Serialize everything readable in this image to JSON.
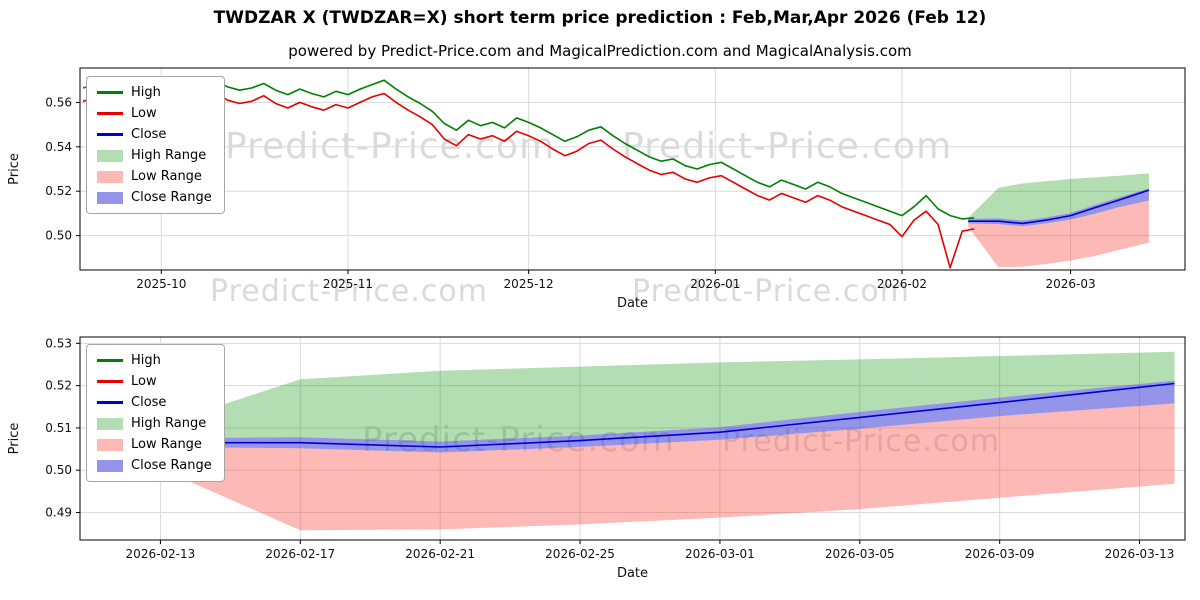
{
  "title": "TWDZAR X (TWDZAR=X) short term price prediction : Feb,Mar,Apr 2026 (Feb 12)",
  "subtitle": "powered by Predict-Price.com and MagicalPrediction.com and MagicalAnalysis.com",
  "watermark": "Predict-Price.com",
  "colors": {
    "high": "#008000",
    "low": "#e60000",
    "close": "#0000cd",
    "high_range": "rgba(0,145,0,0.30)",
    "low_range": "rgba(250,80,70,0.40)",
    "close_range": "rgba(60,60,215,0.55)",
    "grid": "#d9d9d9",
    "axis": "#000000"
  },
  "legend": {
    "items": [
      {
        "label": "High",
        "swatch": "line",
        "color": "high"
      },
      {
        "label": "Low",
        "swatch": "line",
        "color": "low"
      },
      {
        "label": "Close",
        "swatch": "line",
        "color": "close"
      },
      {
        "label": "High Range",
        "swatch": "patch",
        "color": "high_range"
      },
      {
        "label": "Low Range",
        "swatch": "patch",
        "color": "low_range"
      },
      {
        "label": "Close Range",
        "swatch": "patch",
        "color": "close_range"
      }
    ]
  },
  "chart_data": [
    {
      "type": "line",
      "name": "history-and-prediction",
      "xlabel": "Date",
      "ylabel": "Price",
      "xlim": [
        -0.5,
        183
      ],
      "ylim": [
        0.4845,
        0.5755
      ],
      "xticks": [
        {
          "v": 13,
          "label": "2025-10"
        },
        {
          "v": 44,
          "label": "2025-11"
        },
        {
          "v": 74,
          "label": "2025-12"
        },
        {
          "v": 105,
          "label": "2026-01"
        },
        {
          "v": 136,
          "label": "2026-02"
        },
        {
          "v": 164,
          "label": "2026-03"
        }
      ],
      "yticks": [
        {
          "v": 0.5,
          "label": "0.50"
        },
        {
          "v": 0.52,
          "label": "0.52"
        },
        {
          "v": 0.54,
          "label": "0.54"
        },
        {
          "v": 0.56,
          "label": "0.56"
        }
      ],
      "bands": [
        {
          "name": "high-range",
          "color": "high_range",
          "x": [
            147,
            152,
            156,
            160,
            164,
            168,
            172,
            177
          ],
          "upper": [
            0.508,
            0.5215,
            0.5235,
            0.5245,
            0.5255,
            0.5262,
            0.527,
            0.528
          ],
          "lower": [
            0.5075,
            0.5078,
            0.5068,
            0.5082,
            0.5102,
            0.5138,
            0.5172,
            0.5212
          ]
        },
        {
          "name": "low-range",
          "color": "low_range",
          "x": [
            147,
            152,
            156,
            160,
            164,
            168,
            172,
            177
          ],
          "upper": [
            0.5055,
            0.5052,
            0.5042,
            0.5055,
            0.5072,
            0.5098,
            0.5128,
            0.5158
          ],
          "lower": [
            0.504,
            0.4858,
            0.486,
            0.4872,
            0.4888,
            0.4908,
            0.4935,
            0.4968
          ]
        },
        {
          "name": "close-range",
          "color": "close_range",
          "x": [
            147,
            152,
            156,
            160,
            164,
            168,
            172,
            177
          ],
          "upper": [
            0.5075,
            0.5078,
            0.5068,
            0.5082,
            0.5102,
            0.5138,
            0.5172,
            0.5212
          ],
          "lower": [
            0.5055,
            0.5052,
            0.5042,
            0.5055,
            0.5072,
            0.5098,
            0.5128,
            0.5158
          ]
        }
      ],
      "lines": [
        {
          "name": "high",
          "color": "high",
          "x0": 0,
          "dx": 2,
          "values": [
            0.5665,
            0.568,
            0.5655,
            0.567,
            0.5695,
            0.5675,
            0.566,
            0.567,
            0.569,
            0.5665,
            0.568,
            0.57,
            0.567,
            0.5655,
            0.5665,
            0.5685,
            0.5655,
            0.5635,
            0.566,
            0.564,
            0.5625,
            0.565,
            0.5635,
            0.566,
            0.568,
            0.57,
            0.566,
            0.5625,
            0.5595,
            0.556,
            0.5505,
            0.5475,
            0.552,
            0.5495,
            0.551,
            0.5485,
            0.553,
            0.551,
            0.5485,
            0.5455,
            0.5425,
            0.5445,
            0.5475,
            0.549,
            0.545,
            0.5415,
            0.5385,
            0.5355,
            0.5335,
            0.5345,
            0.5315,
            0.53,
            0.532,
            0.533,
            0.53,
            0.527,
            0.524,
            0.522,
            0.525,
            0.523,
            0.521,
            0.524,
            0.522,
            0.519,
            0.517,
            0.515,
            0.513,
            0.511,
            0.509,
            0.513,
            0.518,
            0.512,
            0.509,
            0.5075,
            0.508
          ]
        },
        {
          "name": "low",
          "color": "low",
          "x0": 0,
          "dx": 2,
          "values": [
            0.5605,
            0.562,
            0.5595,
            0.561,
            0.564,
            0.5615,
            0.56,
            0.561,
            0.5635,
            0.5605,
            0.562,
            0.5645,
            0.561,
            0.5595,
            0.5605,
            0.563,
            0.5595,
            0.5575,
            0.56,
            0.558,
            0.5565,
            0.559,
            0.5575,
            0.56,
            0.5625,
            0.564,
            0.56,
            0.5565,
            0.5535,
            0.55,
            0.5435,
            0.5405,
            0.5455,
            0.5435,
            0.545,
            0.5425,
            0.547,
            0.545,
            0.5425,
            0.539,
            0.536,
            0.538,
            0.5415,
            0.543,
            0.539,
            0.5355,
            0.5325,
            0.5295,
            0.5275,
            0.5285,
            0.5255,
            0.524,
            0.526,
            0.527,
            0.524,
            0.521,
            0.518,
            0.516,
            0.519,
            0.517,
            0.515,
            0.518,
            0.516,
            0.513,
            0.511,
            0.509,
            0.507,
            0.505,
            0.4995,
            0.507,
            0.511,
            0.505,
            0.4855,
            0.502,
            0.503
          ]
        },
        {
          "name": "close",
          "color": "close",
          "x": [
            147,
            152,
            156,
            160,
            164,
            168,
            172,
            177
          ],
          "values": [
            0.5065,
            0.5065,
            0.5055,
            0.507,
            0.509,
            0.5125,
            0.516,
            0.5205
          ]
        }
      ]
    },
    {
      "type": "line",
      "name": "prediction-detail",
      "xlabel": "Date",
      "ylabel": "Price",
      "xlim": [
        -2.3,
        29.3
      ],
      "ylim": [
        0.4835,
        0.5315
      ],
      "xticks": [
        {
          "v": 0,
          "label": "2026-02-13"
        },
        {
          "v": 4,
          "label": "2026-02-17"
        },
        {
          "v": 8,
          "label": "2026-02-21"
        },
        {
          "v": 12,
          "label": "2026-02-25"
        },
        {
          "v": 16,
          "label": "2026-03-01"
        },
        {
          "v": 20,
          "label": "2026-03-05"
        },
        {
          "v": 24,
          "label": "2026-03-09"
        },
        {
          "v": 28,
          "label": "2026-03-13"
        }
      ],
      "yticks": [
        {
          "v": 0.49,
          "label": "0.49"
        },
        {
          "v": 0.5,
          "label": "0.50"
        },
        {
          "v": 0.51,
          "label": "0.51"
        },
        {
          "v": 0.52,
          "label": "0.52"
        },
        {
          "v": 0.53,
          "label": "0.53"
        }
      ],
      "bands": [
        {
          "name": "high-range",
          "color": "high_range",
          "x": [
            -1,
            4,
            8,
            12,
            16,
            20,
            24,
            29
          ],
          "upper": [
            0.508,
            0.5215,
            0.5235,
            0.5245,
            0.5255,
            0.5262,
            0.527,
            0.528
          ],
          "lower": [
            0.5075,
            0.5078,
            0.5068,
            0.5082,
            0.5102,
            0.5138,
            0.5172,
            0.5212
          ]
        },
        {
          "name": "low-range",
          "color": "low_range",
          "x": [
            -1,
            4,
            8,
            12,
            16,
            20,
            24,
            29
          ],
          "upper": [
            0.5055,
            0.5052,
            0.5042,
            0.5055,
            0.5072,
            0.5098,
            0.5128,
            0.5158
          ],
          "lower": [
            0.504,
            0.4858,
            0.486,
            0.4872,
            0.4888,
            0.4908,
            0.4935,
            0.4968
          ]
        },
        {
          "name": "close-range",
          "color": "close_range",
          "x": [
            -1,
            4,
            8,
            12,
            16,
            20,
            24,
            29
          ],
          "upper": [
            0.5075,
            0.5078,
            0.5068,
            0.5082,
            0.5102,
            0.5138,
            0.5172,
            0.5212
          ],
          "lower": [
            0.5055,
            0.5052,
            0.5042,
            0.5055,
            0.5072,
            0.5098,
            0.5128,
            0.5158
          ]
        }
      ],
      "lines": [
        {
          "name": "close",
          "color": "close",
          "x": [
            -1,
            4,
            8,
            12,
            16,
            20,
            24,
            29
          ],
          "values": [
            0.5065,
            0.5065,
            0.5055,
            0.507,
            0.509,
            0.5125,
            0.516,
            0.5205
          ]
        }
      ]
    }
  ]
}
